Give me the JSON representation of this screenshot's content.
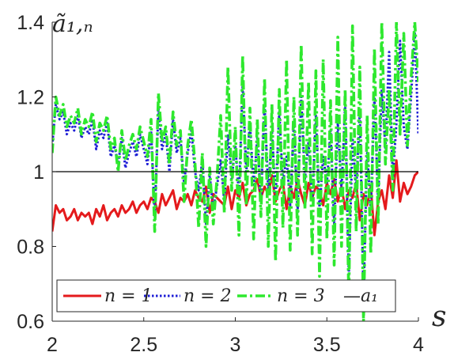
{
  "chart_data": {
    "type": "line",
    "title": "",
    "xlabel": "s",
    "ylabel": "ã₁,ₙ",
    "xlim": [
      2,
      4
    ],
    "ylim": [
      0.6,
      1.4
    ],
    "xticks": [
      "2",
      "2.5",
      "3",
      "3.5",
      "4"
    ],
    "yticks": [
      "0.6",
      "0.8",
      "1",
      "1.2",
      "1.4"
    ],
    "grid": false,
    "legend_position": "bottom",
    "reference_line": {
      "name": "—a₁",
      "y": 1,
      "color": "#000000"
    },
    "series": [
      {
        "name": "n = 1",
        "color": "#e41a1c",
        "style": "solid",
        "x": [
          2.0,
          2.02,
          2.04,
          2.06,
          2.08,
          2.1,
          2.12,
          2.14,
          2.16,
          2.18,
          2.2,
          2.22,
          2.24,
          2.26,
          2.28,
          2.3,
          2.32,
          2.34,
          2.36,
          2.38,
          2.4,
          2.42,
          2.44,
          2.46,
          2.48,
          2.5,
          2.52,
          2.54,
          2.56,
          2.58,
          2.6,
          2.62,
          2.64,
          2.66,
          2.68,
          2.7,
          2.72,
          2.74,
          2.76,
          2.78,
          2.8,
          2.82,
          2.84,
          2.86,
          2.88,
          2.9,
          2.92,
          2.94,
          2.96,
          2.98,
          3.0,
          3.02,
          3.04,
          3.06,
          3.08,
          3.1,
          3.12,
          3.14,
          3.16,
          3.18,
          3.2,
          3.22,
          3.24,
          3.26,
          3.28,
          3.3,
          3.32,
          3.34,
          3.36,
          3.38,
          3.4,
          3.42,
          3.44,
          3.46,
          3.48,
          3.5,
          3.52,
          3.54,
          3.56,
          3.58,
          3.6,
          3.62,
          3.64,
          3.66,
          3.68,
          3.7,
          3.72,
          3.74,
          3.76,
          3.78,
          3.8,
          3.82,
          3.84,
          3.86,
          3.88,
          3.9,
          3.92,
          3.94,
          3.96,
          3.98,
          4.0
        ],
        "y": [
          0.84,
          0.91,
          0.89,
          0.9,
          0.87,
          0.88,
          0.9,
          0.87,
          0.89,
          0.88,
          0.89,
          0.86,
          0.9,
          0.88,
          0.91,
          0.87,
          0.89,
          0.9,
          0.88,
          0.91,
          0.89,
          0.9,
          0.92,
          0.89,
          0.91,
          0.92,
          0.9,
          0.93,
          0.92,
          0.89,
          0.94,
          0.91,
          0.93,
          0.95,
          0.9,
          0.93,
          0.92,
          0.94,
          0.91,
          0.95,
          0.93,
          0.92,
          0.96,
          0.89,
          0.94,
          0.93,
          0.92,
          0.91,
          0.96,
          0.9,
          0.95,
          0.93,
          0.97,
          0.91,
          0.94,
          0.95,
          0.98,
          0.93,
          0.96,
          0.94,
          0.99,
          0.92,
          0.95,
          0.97,
          0.9,
          0.96,
          0.93,
          0.98,
          0.94,
          0.91,
          0.97,
          0.93,
          0.96,
          0.95,
          0.91,
          0.97,
          0.94,
          0.98,
          0.92,
          0.96,
          0.9,
          0.95,
          0.93,
          0.97,
          0.87,
          0.94,
          0.91,
          0.96,
          0.83,
          0.92,
          0.95,
          0.9,
          0.99,
          0.93,
          1.03,
          0.92,
          0.97,
          0.94,
          0.96,
          0.99,
          1.0
        ]
      },
      {
        "name": "n = 2",
        "color": "#1f1fd6",
        "style": "dotted",
        "x": [
          2.0,
          2.02,
          2.04,
          2.06,
          2.08,
          2.1,
          2.12,
          2.14,
          2.16,
          2.18,
          2.2,
          2.22,
          2.24,
          2.26,
          2.28,
          2.3,
          2.32,
          2.34,
          2.36,
          2.38,
          2.4,
          2.42,
          2.44,
          2.46,
          2.48,
          2.5,
          2.52,
          2.54,
          2.56,
          2.58,
          2.6,
          2.62,
          2.64,
          2.66,
          2.68,
          2.7,
          2.72,
          2.74,
          2.76,
          2.78,
          2.8,
          2.82,
          2.84,
          2.86,
          2.88,
          2.9,
          2.92,
          2.94,
          2.96,
          2.98,
          3.0,
          3.02,
          3.04,
          3.06,
          3.08,
          3.1,
          3.12,
          3.14,
          3.16,
          3.18,
          3.2,
          3.22,
          3.24,
          3.26,
          3.28,
          3.3,
          3.32,
          3.34,
          3.36,
          3.38,
          3.4,
          3.42,
          3.44,
          3.46,
          3.48,
          3.5,
          3.52,
          3.54,
          3.56,
          3.58,
          3.6,
          3.62,
          3.64,
          3.66,
          3.68,
          3.7,
          3.72,
          3.74,
          3.76,
          3.78,
          3.8,
          3.82,
          3.84,
          3.86,
          3.88,
          3.9,
          3.92,
          3.94,
          3.96,
          3.98,
          4.0
        ],
        "y": [
          1.07,
          1.18,
          1.14,
          1.16,
          1.1,
          1.13,
          1.11,
          1.15,
          1.09,
          1.12,
          1.1,
          1.14,
          1.06,
          1.11,
          1.09,
          1.13,
          1.04,
          1.07,
          1.02,
          1.09,
          1.01,
          1.05,
          1.08,
          1.04,
          1.1,
          1.06,
          1.02,
          1.11,
          0.88,
          1.17,
          1.06,
          1.1,
          1.0,
          1.14,
          1.05,
          1.09,
          0.97,
          1.05,
          1.11,
          1.0,
          0.95,
          1.03,
          0.86,
          0.99,
          0.9,
          0.96,
          1.03,
          0.92,
          1.1,
          0.98,
          1.07,
          0.94,
          1.23,
          1.0,
          1.13,
          0.96,
          1.09,
          0.92,
          1.18,
          0.95,
          1.11,
          0.93,
          1.16,
          0.97,
          1.04,
          0.91,
          1.13,
          0.89,
          1.2,
          0.98,
          1.08,
          0.92,
          1.15,
          0.9,
          1.04,
          0.97,
          1.11,
          0.86,
          1.13,
          0.95,
          1.18,
          0.72,
          1.09,
          0.95,
          1.16,
          0.67,
          1.05,
          0.9,
          1.2,
          0.92,
          1.22,
          1.06,
          1.32,
          0.98,
          1.13,
          1.35,
          1.12,
          1.06,
          1.2,
          1.37,
          1.1
        ]
      },
      {
        "name": "n = 3",
        "color": "#2ee82e",
        "style": "dash-dot",
        "x": [
          2.0,
          2.02,
          2.04,
          2.06,
          2.08,
          2.1,
          2.12,
          2.14,
          2.16,
          2.18,
          2.2,
          2.22,
          2.24,
          2.26,
          2.28,
          2.3,
          2.32,
          2.34,
          2.36,
          2.38,
          2.4,
          2.42,
          2.44,
          2.46,
          2.48,
          2.5,
          2.52,
          2.54,
          2.56,
          2.58,
          2.6,
          2.62,
          2.64,
          2.66,
          2.68,
          2.7,
          2.72,
          2.74,
          2.76,
          2.78,
          2.8,
          2.82,
          2.84,
          2.86,
          2.88,
          2.9,
          2.92,
          2.94,
          2.96,
          2.98,
          3.0,
          3.02,
          3.04,
          3.06,
          3.08,
          3.1,
          3.12,
          3.14,
          3.16,
          3.18,
          3.2,
          3.22,
          3.24,
          3.26,
          3.28,
          3.3,
          3.32,
          3.34,
          3.36,
          3.38,
          3.4,
          3.42,
          3.44,
          3.46,
          3.48,
          3.5,
          3.52,
          3.54,
          3.56,
          3.58,
          3.6,
          3.62,
          3.64,
          3.66,
          3.68,
          3.7,
          3.72,
          3.74,
          3.76,
          3.78,
          3.8,
          3.82,
          3.84,
          3.86,
          3.88,
          3.9,
          3.92,
          3.94,
          3.96,
          3.98,
          4.0
        ],
        "y": [
          1.05,
          1.2,
          1.15,
          1.18,
          1.12,
          1.15,
          1.13,
          1.17,
          1.1,
          1.14,
          1.12,
          1.16,
          1.08,
          1.13,
          1.11,
          1.15,
          1.06,
          1.09,
          1.0,
          1.11,
          1.03,
          1.07,
          1.1,
          1.06,
          1.12,
          1.08,
          1.04,
          1.14,
          0.84,
          1.21,
          1.08,
          1.12,
          1.02,
          1.16,
          1.07,
          1.11,
          0.92,
          1.07,
          1.14,
          1.02,
          0.85,
          1.05,
          0.8,
          1.01,
          0.86,
          0.98,
          1.15,
          0.89,
          1.28,
          0.95,
          1.12,
          0.83,
          1.31,
          0.91,
          1.17,
          0.82,
          1.14,
          0.88,
          1.25,
          0.8,
          1.18,
          0.76,
          1.22,
          0.85,
          1.3,
          0.79,
          1.2,
          0.83,
          1.34,
          0.9,
          1.24,
          0.78,
          1.27,
          0.72,
          1.3,
          0.82,
          1.19,
          0.75,
          1.36,
          0.8,
          1.22,
          0.66,
          1.39,
          0.84,
          1.28,
          0.6,
          1.15,
          0.78,
          1.33,
          0.86,
          1.4,
          1.02,
          1.22,
          0.95,
          1.4,
          1.1,
          1.37,
          1.07,
          1.25,
          1.4,
          1.24
        ]
      }
    ]
  }
}
